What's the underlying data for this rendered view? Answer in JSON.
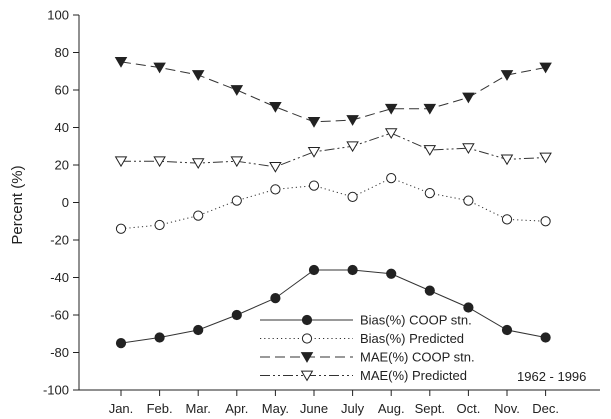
{
  "chart_data": {
    "type": "line",
    "title": "",
    "xlabel": "",
    "ylabel": "Percent (%)",
    "ylim": [
      -100,
      100
    ],
    "yticks": [
      -100,
      -80,
      -60,
      -40,
      -20,
      0,
      20,
      40,
      60,
      80,
      100
    ],
    "categories": [
      "Jan.",
      "Feb.",
      "Mar.",
      "Apr.",
      "May.",
      "June",
      "July",
      "Aug.",
      "Sept.",
      "Oct.",
      "Nov.",
      "Dec."
    ],
    "grid": false,
    "legend_position": "bottom-right",
    "annotation": "1962 - 1996",
    "series": [
      {
        "name": "Bias(%) COOP stn.",
        "line_style": "solid",
        "marker": "filled-circle",
        "values": [
          -75,
          -72,
          -68,
          -60,
          -51,
          -36,
          -36,
          -38,
          -47,
          -56,
          -68,
          -72
        ]
      },
      {
        "name": "Bias(%) Predicted",
        "line_style": "dotted",
        "marker": "open-circle",
        "values": [
          -14,
          -12,
          -7,
          1,
          7,
          9,
          3,
          13,
          5,
          1,
          -9,
          -10
        ]
      },
      {
        "name": "MAE(%) COOP stn.",
        "line_style": "dashed",
        "marker": "filled-triangle-down",
        "values": [
          75,
          72,
          68,
          60,
          51,
          43,
          44,
          50,
          50,
          56,
          68,
          72
        ]
      },
      {
        "name": "MAE(%) Predicted",
        "line_style": "dash-dot-dot",
        "marker": "open-triangle-down",
        "values": [
          22,
          22,
          21,
          22,
          19,
          27,
          30,
          37,
          28,
          29,
          23,
          24
        ]
      }
    ]
  }
}
